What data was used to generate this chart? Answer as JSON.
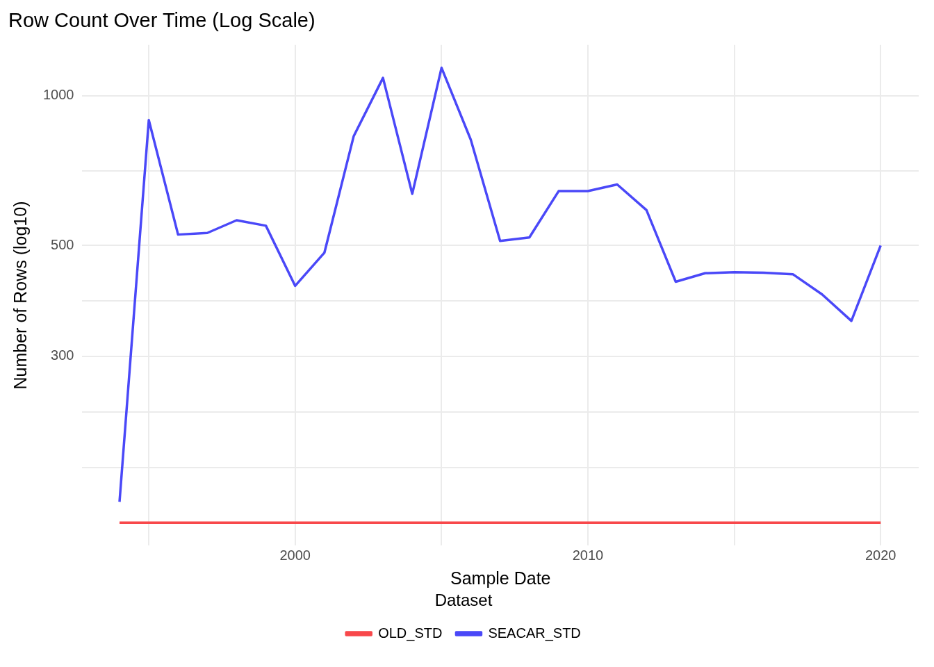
{
  "chart_data": {
    "type": "line",
    "title": "Row Count Over Time (Log Scale)",
    "xlabel": "Sample Date",
    "ylabel": "Number of Rows (log10)",
    "legend_title": "Dataset",
    "x": [
      1994,
      1995,
      1996,
      1997,
      1998,
      1999,
      2000,
      2001,
      2002,
      2003,
      2004,
      2005,
      2006,
      2007,
      2008,
      2009,
      2010,
      2011,
      2012,
      2013,
      2014,
      2015,
      2016,
      2017,
      2018,
      2019,
      2020
    ],
    "series": [
      {
        "name": "OLD_STD",
        "color": "#f8484b",
        "values": [
          139,
          139,
          139,
          139,
          139,
          139,
          139,
          139,
          139,
          139,
          139,
          139,
          139,
          139,
          139,
          139,
          139,
          139,
          139,
          139,
          139,
          139,
          139,
          139,
          139,
          139,
          139
        ]
      },
      {
        "name": "SEACAR_STD",
        "color": "#4a48f8",
        "values": [
          153,
          893,
          526,
          530,
          562,
          548,
          415,
          484,
          829,
          1085,
          635,
          1137,
          815,
          511,
          519,
          643,
          643,
          663,
          589,
          423,
          440,
          442,
          441,
          438,
          399,
          353,
          500
        ]
      }
    ],
    "log": "y",
    "xlim": [
      1992.73,
      2021.3
    ],
    "ylim": [
      125,
      1263
    ],
    "xticks": [
      {
        "value": 1995,
        "label": null
      },
      2000,
      {
        "value": 2005,
        "label": null
      },
      2010,
      {
        "value": 2015,
        "label": null
      },
      2020
    ],
    "yticks": [
      {
        "value": 179,
        "label": null
      },
      {
        "value": 232,
        "label": null
      },
      300,
      {
        "value": 387,
        "label": null
      },
      500,
      {
        "value": 707,
        "label": null
      },
      1000
    ],
    "grid": true,
    "legend": "bottom",
    "marker": "none",
    "line_style": "solid"
  }
}
